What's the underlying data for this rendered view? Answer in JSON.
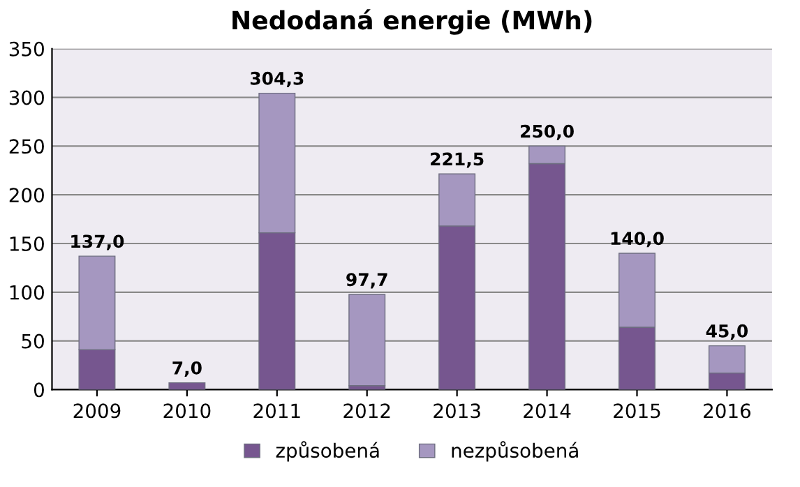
{
  "chart_data": {
    "type": "bar",
    "title": "Nedodaná energie (MWh)",
    "stacked": true,
    "categories": [
      "2009",
      "2010",
      "2011",
      "2012",
      "2013",
      "2014",
      "2015",
      "2016"
    ],
    "series": [
      {
        "name": "způsobená",
        "color": "#76568f",
        "values": [
          41,
          7,
          161,
          4,
          168,
          232,
          64,
          17
        ]
      },
      {
        "name": "nezpůsobená",
        "color": "#a597c0",
        "values": [
          96,
          null,
          143.3,
          93.7,
          53.5,
          18,
          76,
          28
        ]
      }
    ],
    "totals": [
      "137,0",
      "7,0",
      "304,3",
      "97,7",
      "221,5",
      "250,0",
      "140,0",
      "45,0"
    ],
    "ylim": [
      0,
      350
    ],
    "yticks": [
      0,
      50,
      100,
      150,
      200,
      250,
      300,
      350
    ],
    "grid": "y",
    "legend": "bottom"
  }
}
